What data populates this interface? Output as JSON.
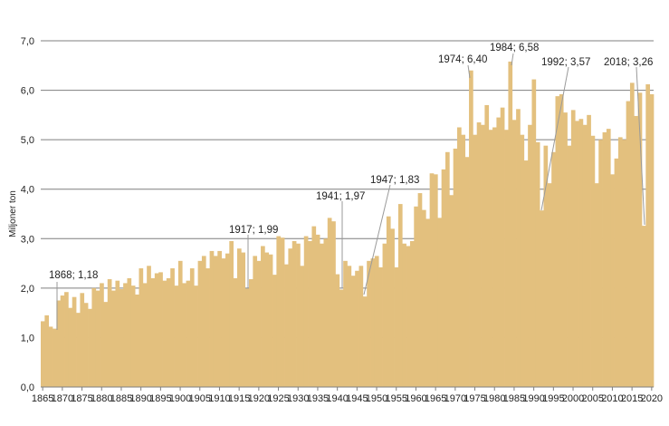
{
  "colors": {
    "bar": "#E3C07E",
    "grid": "#7f7f7f",
    "leader": "#9a9a9a",
    "text": "#222222"
  },
  "chart_data": {
    "type": "bar",
    "ylabel": "Miljoner ton",
    "ylim": [
      0,
      7
    ],
    "y_ticks": [
      0,
      1,
      2,
      3,
      4,
      5,
      6,
      7
    ],
    "y_tick_labels": [
      "0,0",
      "1,0",
      "2,0",
      "3,0",
      "4,0",
      "5,0",
      "6,0",
      "7,0"
    ],
    "x_tick_labels": [
      "1865",
      "1870",
      "1875",
      "1880",
      "1885",
      "1890",
      "1895",
      "1900",
      "1905",
      "1910",
      "1915",
      "1920",
      "1925",
      "1930",
      "1935",
      "1940",
      "1945",
      "1950",
      "1955",
      "1960",
      "1965",
      "1970",
      "1975",
      "1980",
      "1985",
      "1990",
      "1995",
      "2000",
      "2005",
      "2010",
      "2015",
      "2020"
    ],
    "grid": "horizontal",
    "first_year": 1865,
    "last_year": 2020,
    "series": [
      {
        "values": [
          1.33,
          1.45,
          1.22,
          1.18,
          1.75,
          1.85,
          1.92,
          1.6,
          1.82,
          1.5,
          1.9,
          1.7,
          1.58,
          2.0,
          1.95,
          2.1,
          1.72,
          2.18,
          1.95,
          2.15,
          1.98,
          2.1,
          2.2,
          2.05,
          1.87,
          2.4,
          2.1,
          2.45,
          2.2,
          2.3,
          2.32,
          2.15,
          2.2,
          2.4,
          2.05,
          2.55,
          2.1,
          2.15,
          2.4,
          2.05,
          2.55,
          2.65,
          2.4,
          2.75,
          2.65,
          2.75,
          2.6,
          2.7,
          2.95,
          2.2,
          2.8,
          2.72,
          1.99,
          2.18,
          2.65,
          2.55,
          2.85,
          2.72,
          2.68,
          2.27,
          3.05,
          3.02,
          2.48,
          2.8,
          2.95,
          2.9,
          2.45,
          3.05,
          2.95,
          3.25,
          3.08,
          2.9,
          3.0,
          3.42,
          3.35,
          2.28,
          1.97,
          2.55,
          2.45,
          2.25,
          2.35,
          2.45,
          1.83,
          2.55,
          2.6,
          2.65,
          2.42,
          2.9,
          3.45,
          3.2,
          2.42,
          3.7,
          2.9,
          2.85,
          2.95,
          3.65,
          3.92,
          3.58,
          3.4,
          4.32,
          4.3,
          3.42,
          4.4,
          4.75,
          3.88,
          4.82,
          5.25,
          5.1,
          4.65,
          6.4,
          5.1,
          5.35,
          5.3,
          5.7,
          5.2,
          5.25,
          5.45,
          5.65,
          5.2,
          6.58,
          5.4,
          5.62,
          5.1,
          4.58,
          5.3,
          6.22,
          4.95,
          3.57,
          4.88,
          4.12,
          4.75,
          5.88,
          5.92,
          5.55,
          4.88,
          5.6,
          5.38,
          5.42,
          5.3,
          5.5,
          5.08,
          4.12,
          5.0,
          5.15,
          5.22,
          4.3,
          4.62,
          5.05,
          5.0,
          5.78,
          6.15,
          5.48,
          5.95,
          3.26,
          6.12,
          5.92
        ]
      }
    ],
    "annotations": [
      {
        "label": "1868; 1,18",
        "year": 1868,
        "value": 1.18
      },
      {
        "label": "1917; 1,99",
        "year": 1917,
        "value": 1.99
      },
      {
        "label": "1941; 1,97",
        "year": 1941,
        "value": 1.97
      },
      {
        "label": "1947; 1,83",
        "year": 1947,
        "value": 1.83
      },
      {
        "label": "1974; 6,40",
        "year": 1974,
        "value": 6.4
      },
      {
        "label": "1984; 6,58",
        "year": 1984,
        "value": 6.58
      },
      {
        "label": "1992; 3,57",
        "year": 1992,
        "value": 3.57
      },
      {
        "label": "2018; 3,26",
        "year": 2018,
        "value": 3.26
      }
    ]
  }
}
